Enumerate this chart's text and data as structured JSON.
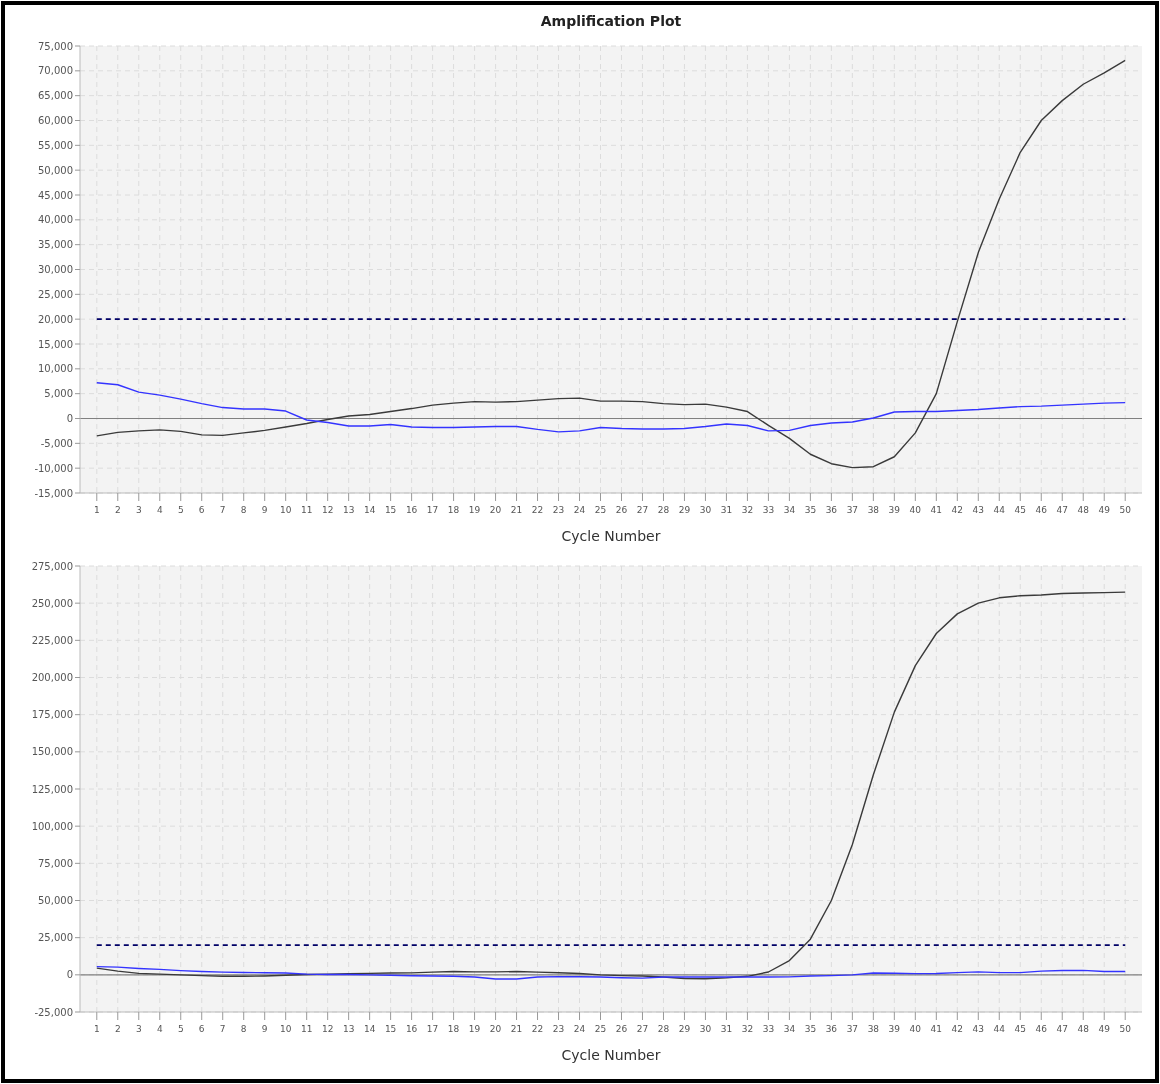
{
  "chart_data": [
    {
      "type": "line",
      "title": "Amplification Plot",
      "xlabel": "Cycle Number",
      "x": [
        1,
        2,
        3,
        4,
        5,
        6,
        7,
        8,
        9,
        10,
        11,
        12,
        13,
        14,
        15,
        16,
        17,
        18,
        19,
        20,
        21,
        22,
        23,
        24,
        25,
        26,
        27,
        28,
        29,
        30,
        31,
        32,
        33,
        34,
        35,
        36,
        37,
        38,
        39,
        40,
        41,
        42,
        43,
        44,
        45,
        46,
        47,
        48,
        49,
        50
      ],
      "xlim": [
        0.2,
        50.8
      ],
      "xticks": [
        1,
        2,
        3,
        4,
        5,
        6,
        7,
        8,
        9,
        10,
        11,
        12,
        13,
        14,
        15,
        16,
        17,
        18,
        19,
        20,
        21,
        22,
        23,
        24,
        25,
        26,
        27,
        28,
        29,
        30,
        31,
        32,
        33,
        34,
        35,
        36,
        37,
        38,
        39,
        40,
        41,
        42,
        43,
        44,
        45,
        46,
        47,
        48,
        49,
        50
      ],
      "series": [
        {
          "color": "#3a3a3a",
          "values": [
            -3500,
            -2800,
            -2500,
            -2300,
            -2600,
            -3300,
            -3400,
            -2900,
            -2400,
            -1700,
            -1000,
            -200,
            500,
            800,
            1400,
            2000,
            2700,
            3100,
            3400,
            3300,
            3400,
            3700,
            4000,
            4100,
            3500,
            3500,
            3400,
            3000,
            2800,
            2900,
            2300,
            1400,
            -1400,
            -4000,
            -7200,
            -9100,
            -9900,
            -9700,
            -7700,
            -2900,
            5000,
            19500,
            33400,
            44200,
            53600,
            60000,
            64000,
            67300,
            69600,
            72100
          ]
        },
        {
          "color": "#3333ff",
          "values": [
            7200,
            6800,
            5300,
            4700,
            3900,
            3000,
            2200,
            1900,
            1900,
            1500,
            -300,
            -800,
            -1500,
            -1500,
            -1200,
            -1700,
            -1800,
            -1800,
            -1700,
            -1600,
            -1600,
            -2200,
            -2700,
            -2500,
            -1800,
            -2000,
            -2100,
            -2100,
            -2000,
            -1600,
            -1100,
            -1400,
            -2500,
            -2400,
            -1400,
            -900,
            -700,
            100,
            1300,
            1400,
            1400,
            1600,
            1800,
            2100,
            2400,
            2500,
            2700,
            2900,
            3100,
            3200
          ]
        }
      ],
      "ylim": [
        -15000,
        75000
      ],
      "yticks": [
        {
          "value": -15000,
          "label": "-15,000"
        },
        {
          "value": -10000,
          "label": "-10,000"
        },
        {
          "value": -5000,
          "label": "-5,000"
        },
        0,
        {
          "value": 5000,
          "label": "5,000"
        },
        {
          "value": 10000,
          "label": "10,000"
        },
        {
          "value": 15000,
          "label": "15,000"
        },
        {
          "value": 20000,
          "label": "20,000"
        },
        {
          "value": 25000,
          "label": "25,000"
        },
        {
          "value": 30000,
          "label": "30,000"
        },
        {
          "value": 35000,
          "label": "35,000"
        },
        {
          "value": 40000,
          "label": "40,000"
        },
        {
          "value": 45000,
          "label": "45,000"
        },
        {
          "value": 50000,
          "label": "50,000"
        },
        {
          "value": 55000,
          "label": "55,000"
        },
        {
          "value": 60000,
          "label": "60,000"
        },
        {
          "value": 65000,
          "label": "65,000"
        },
        {
          "value": 70000,
          "label": "70,000"
        },
        {
          "value": 75000,
          "label": "75,000"
        }
      ],
      "ref_lines": [
        {
          "axis": "y",
          "value": 20000,
          "color": "#000066",
          "line_style": "dashed"
        },
        {
          "axis": "y",
          "value": 0,
          "color": "#808080",
          "line_style": "solid"
        }
      ],
      "grid": true,
      "line_style": "solid",
      "marker": "none"
    },
    {
      "type": "line",
      "xlabel": "Cycle Number",
      "x": [
        1,
        2,
        3,
        4,
        5,
        6,
        7,
        8,
        9,
        10,
        11,
        12,
        13,
        14,
        15,
        16,
        17,
        18,
        19,
        20,
        21,
        22,
        23,
        24,
        25,
        26,
        27,
        28,
        29,
        30,
        31,
        32,
        33,
        34,
        35,
        36,
        37,
        38,
        39,
        40,
        41,
        42,
        43,
        44,
        45,
        46,
        47,
        48,
        49,
        50
      ],
      "xlim": [
        0.2,
        50.8
      ],
      "xticks": [
        1,
        2,
        3,
        4,
        5,
        6,
        7,
        8,
        9,
        10,
        11,
        12,
        13,
        14,
        15,
        16,
        17,
        18,
        19,
        20,
        21,
        22,
        23,
        24,
        25,
        26,
        27,
        28,
        29,
        30,
        31,
        32,
        33,
        34,
        35,
        36,
        37,
        38,
        39,
        40,
        41,
        42,
        43,
        44,
        45,
        46,
        47,
        48,
        49,
        50
      ],
      "series": [
        {
          "color": "#3a3a3a",
          "values": [
            4500,
            2500,
            1000,
            500,
            0,
            -500,
            -1000,
            -1000,
            -800,
            -300,
            200,
            500,
            800,
            1000,
            1200,
            1300,
            1800,
            2200,
            2000,
            2000,
            2200,
            1800,
            1400,
            900,
            0,
            -500,
            -800,
            -1500,
            -2500,
            -2600,
            -2000,
            -1000,
            1900,
            9600,
            24000,
            50000,
            87700,
            134600,
            176700,
            208000,
            229600,
            242800,
            250000,
            253600,
            255000,
            255500,
            256500,
            256800,
            257100,
            257400
          ]
        },
        {
          "color": "#3333ff",
          "values": [
            5500,
            5200,
            4300,
            3700,
            2800,
            2200,
            1800,
            1600,
            1400,
            1200,
            500,
            200,
            200,
            0,
            -300,
            -600,
            -800,
            -1000,
            -1500,
            -2800,
            -2800,
            -1500,
            -1200,
            -1300,
            -1500,
            -2000,
            -2200,
            -1500,
            -1500,
            -1500,
            -1500,
            -1500,
            -1500,
            -1400,
            -800,
            -500,
            0,
            1200,
            1100,
            800,
            900,
            1500,
            2000,
            1500,
            1500,
            2500,
            2900,
            3000,
            2200,
            2200
          ]
        }
      ],
      "ylim": [
        -25000,
        275000
      ],
      "yticks": [
        {
          "value": -25000,
          "label": "-25,000"
        },
        0,
        {
          "value": 25000,
          "label": "25,000"
        },
        {
          "value": 50000,
          "label": "50,000"
        },
        {
          "value": 75000,
          "label": "75,000"
        },
        {
          "value": 100000,
          "label": "100,000"
        },
        {
          "value": 125000,
          "label": "125,000"
        },
        {
          "value": 150000,
          "label": "150,000"
        },
        {
          "value": 175000,
          "label": "175,000"
        },
        {
          "value": 200000,
          "label": "200,000"
        },
        {
          "value": 225000,
          "label": "225,000"
        },
        {
          "value": 250000,
          "label": "250,000"
        },
        {
          "value": 275000,
          "label": "275,000"
        }
      ],
      "ref_lines": [
        {
          "axis": "y",
          "value": 20000,
          "color": "#000066",
          "line_style": "dashed"
        },
        {
          "axis": "y",
          "value": 0,
          "color": "#808080",
          "line_style": "solid"
        }
      ],
      "grid": true,
      "line_style": "solid",
      "marker": "none"
    }
  ]
}
